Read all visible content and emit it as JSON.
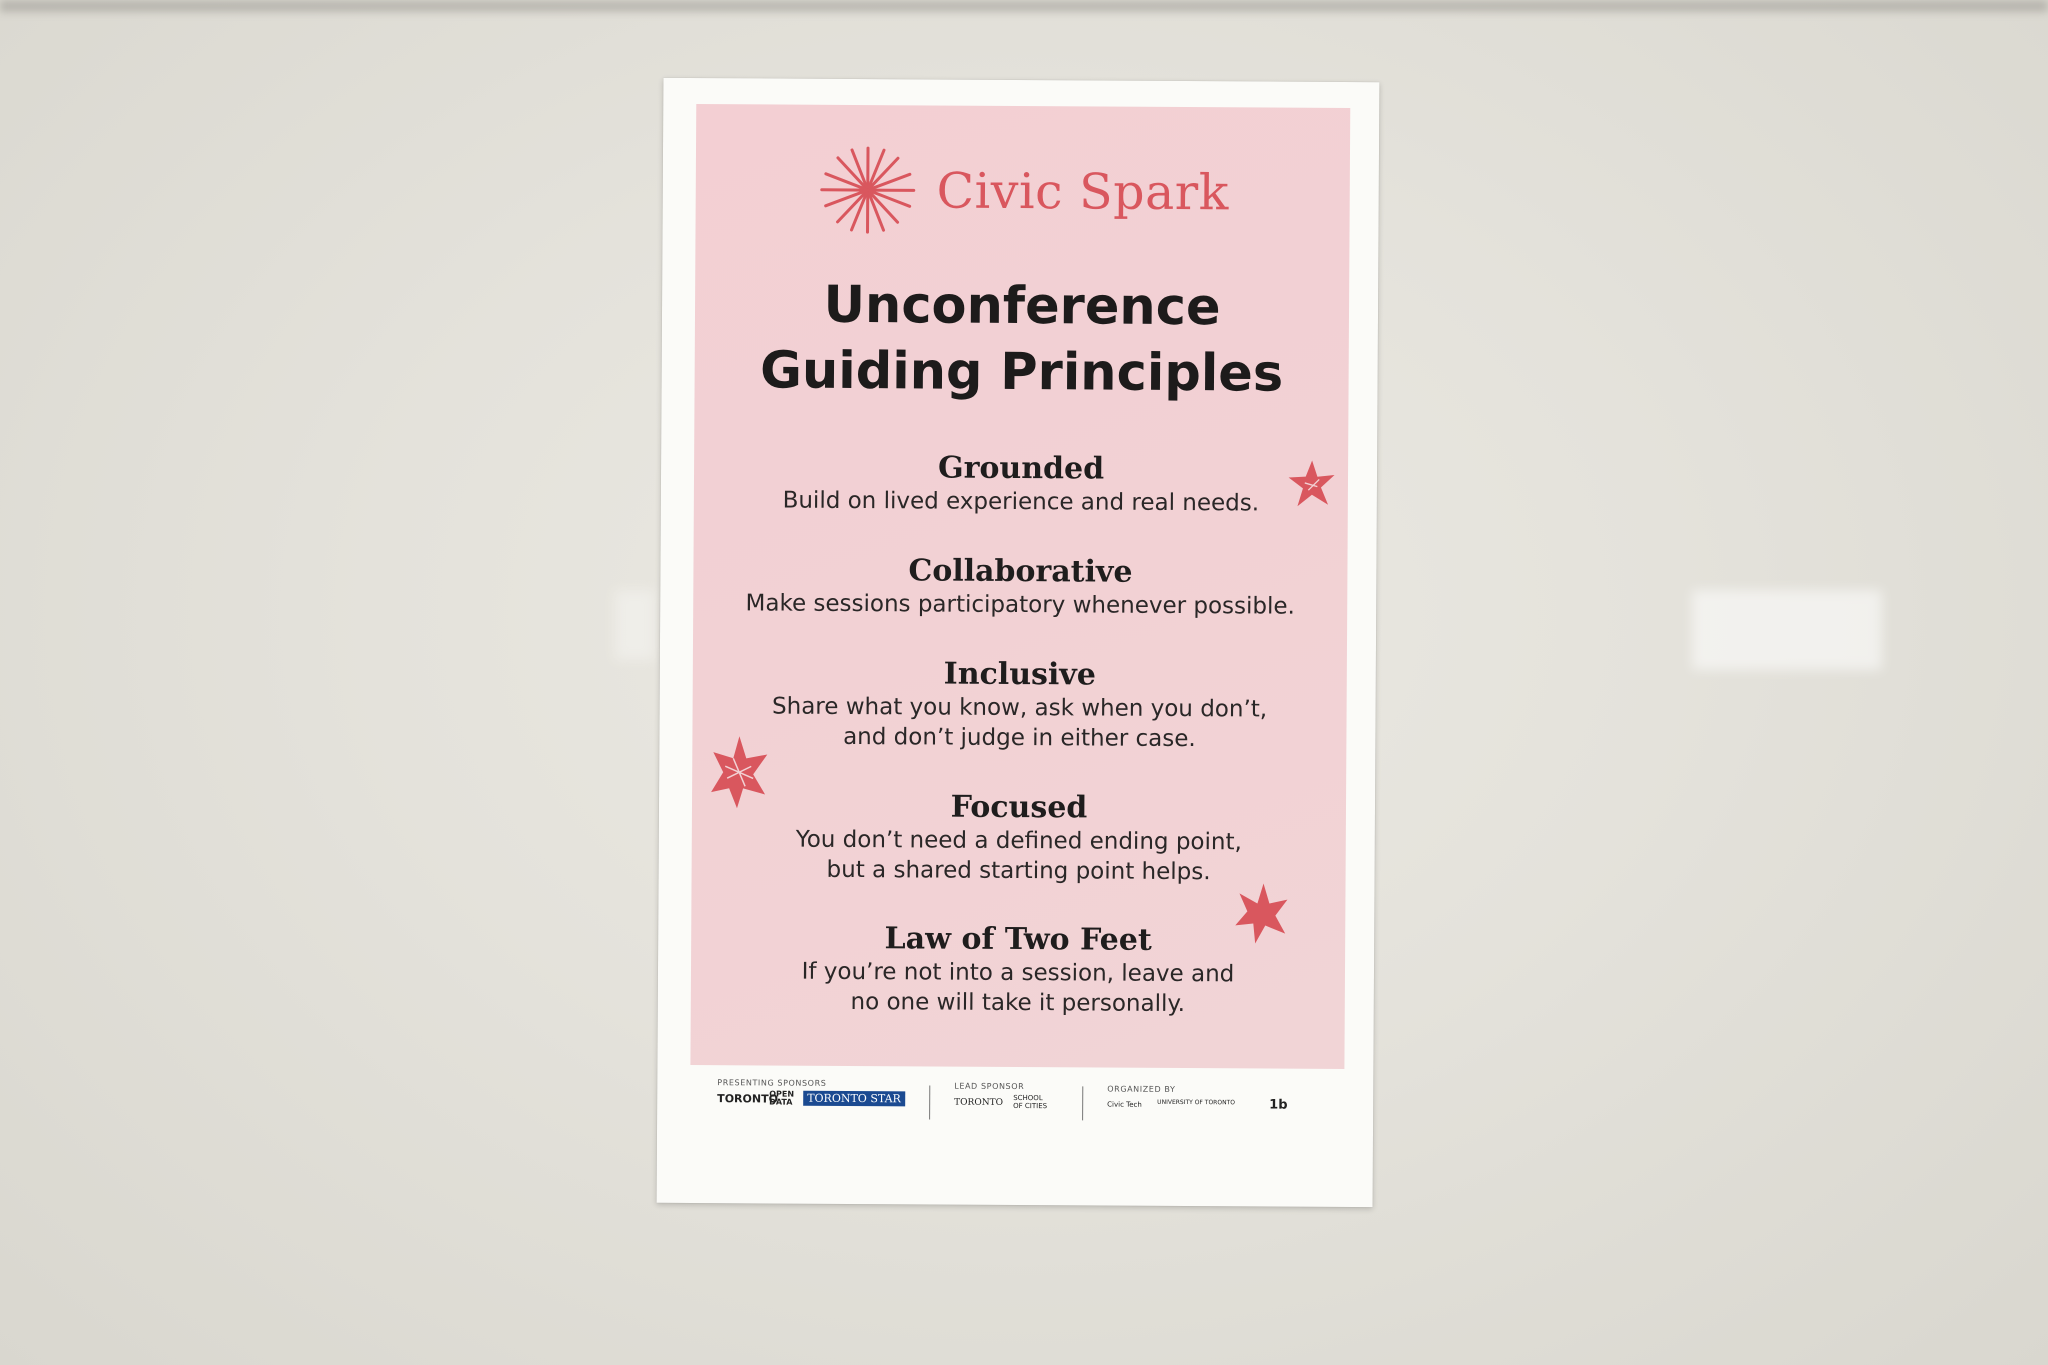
{
  "poster": {
    "brand": {
      "name": "Civic Spark",
      "icon": "spark-burst-icon",
      "color": "#d9575e"
    },
    "title": {
      "line1": "Unconference",
      "line2": "Guiding Principles"
    },
    "principles": [
      {
        "heading": "Grounded",
        "lines": [
          "Build on lived experience and real needs."
        ]
      },
      {
        "heading": "Collaborative",
        "lines": [
          "Make sessions participatory whenever possible."
        ]
      },
      {
        "heading": "Inclusive",
        "lines": [
          "Share what you know, ask when you don’t,",
          "and don’t judge in either case."
        ]
      },
      {
        "heading": "Focused",
        "lines": [
          "You don’t need a defined ending point,",
          "but a shared starting point helps."
        ]
      },
      {
        "heading": "Law of Two Feet",
        "lines": [
          "If you’re not into a session, leave and",
          "no one will take it personally."
        ]
      }
    ],
    "colors": {
      "background_pink": "#f2d1d4",
      "accent": "#d9575e",
      "star": "#d9575e",
      "text": "#1d1b1b"
    }
  },
  "footer": {
    "presenting_label": "PRESENTING SPONSORS",
    "presenting_logos": [
      "TORONTO",
      "OPEN DATA",
      "TORONTO STAR"
    ],
    "lead_label": "LEAD SPONSOR",
    "lead_logos": [
      "TORONTO",
      "SCHOOL OF CITIES"
    ],
    "organized_label": "ORGANIZED BY",
    "organized_logos": [
      "Civic Tech",
      "UNIVERSITY OF TORONTO",
      "1b"
    ]
  }
}
